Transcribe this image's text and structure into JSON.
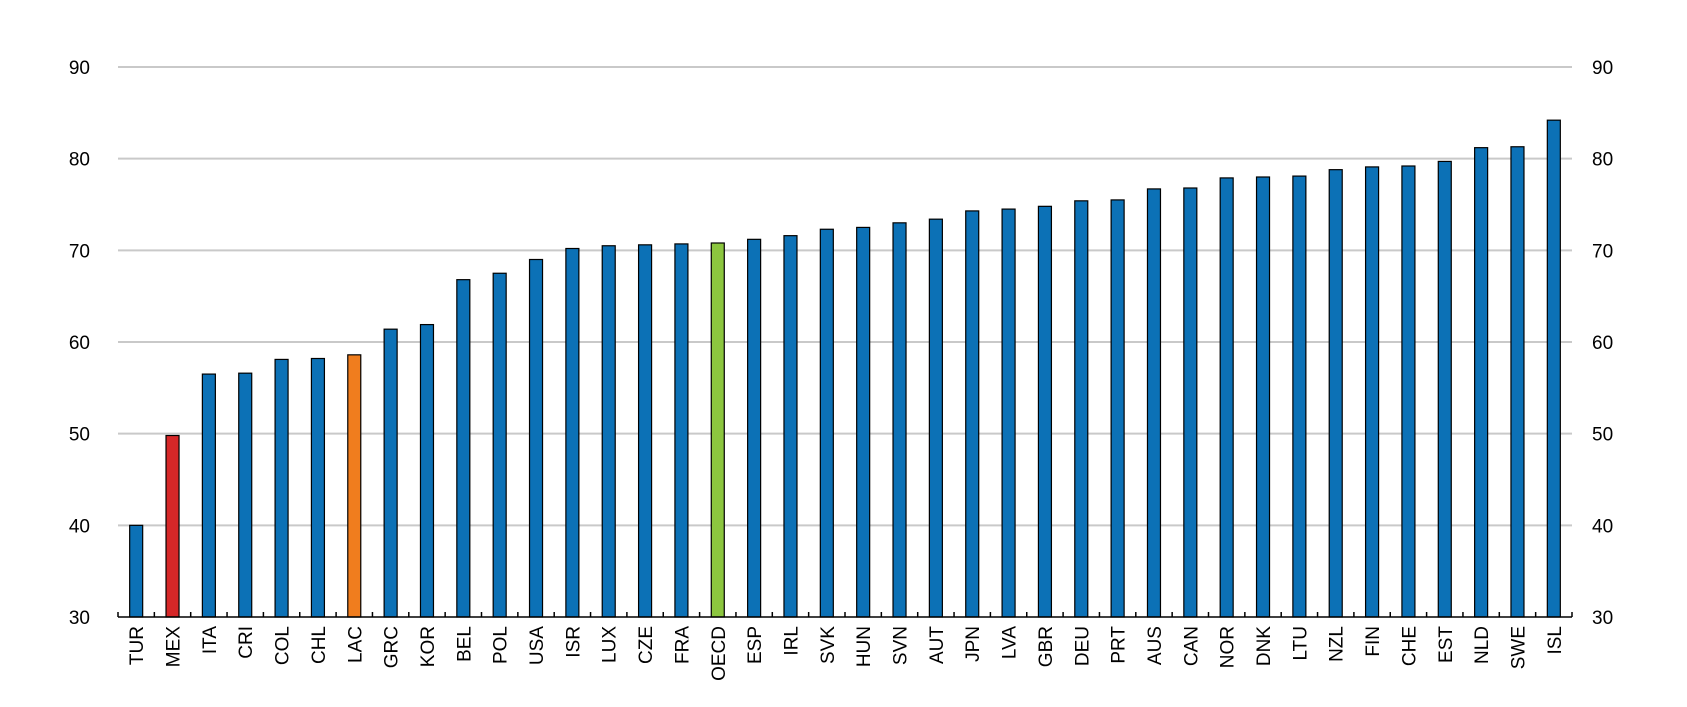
{
  "chart_data": {
    "type": "bar",
    "categories": [
      "TUR",
      "MEX",
      "ITA",
      "CRI",
      "COL",
      "CHL",
      "LAC",
      "GRC",
      "KOR",
      "BEL",
      "POL",
      "USA",
      "ISR",
      "LUX",
      "CZE",
      "FRA",
      "OECD",
      "ESP",
      "IRL",
      "SVK",
      "HUN",
      "SVN",
      "AUT",
      "JPN",
      "LVA",
      "GBR",
      "DEU",
      "PRT",
      "AUS",
      "CAN",
      "NOR",
      "DNK",
      "LTU",
      "NZL",
      "FIN",
      "CHE",
      "EST",
      "NLD",
      "SWE",
      "ISL"
    ],
    "values": [
      40.0,
      49.8,
      56.5,
      56.6,
      58.1,
      58.2,
      58.6,
      61.4,
      61.9,
      66.8,
      67.5,
      69.0,
      70.2,
      70.5,
      70.6,
      70.7,
      70.8,
      71.2,
      71.6,
      72.3,
      72.5,
      73.0,
      73.4,
      74.3,
      74.5,
      74.8,
      75.4,
      75.5,
      76.7,
      76.8,
      77.9,
      78.0,
      78.1,
      78.8,
      79.1,
      79.2,
      79.7,
      81.2,
      81.3,
      84.2
    ],
    "colors": {
      "default": "#0c71b6",
      "MEX": "#d62728",
      "LAC": "#f07d1e",
      "OECD": "#8cc63f"
    },
    "ylim": [
      30,
      90
    ],
    "yticks": [
      30,
      40,
      50,
      60,
      70,
      80,
      90
    ],
    "grid": true,
    "title": "",
    "xlabel": "",
    "ylabel": ""
  }
}
